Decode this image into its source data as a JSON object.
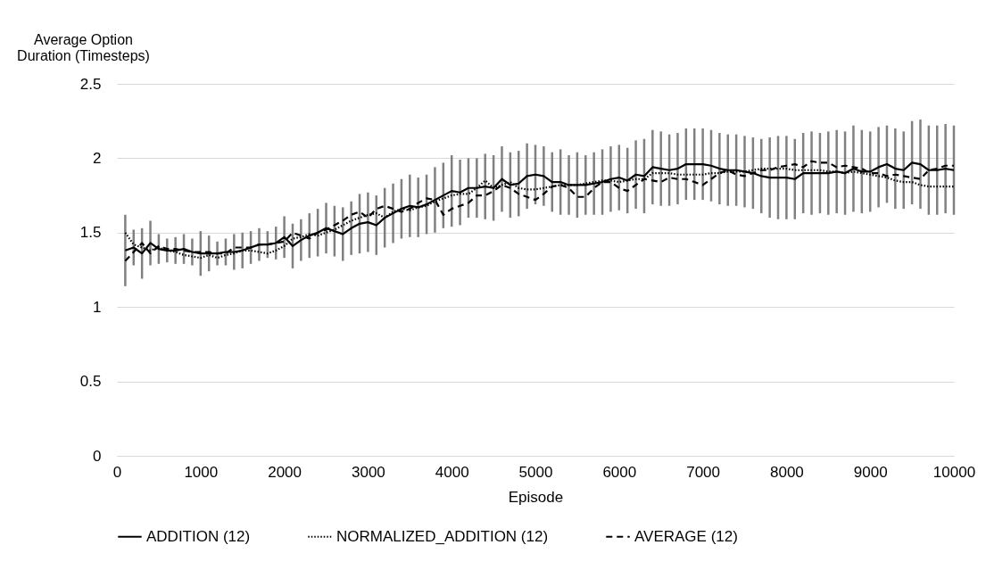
{
  "chart_data": {
    "type": "line",
    "xlabel": "Episode",
    "ylabel": "Average Option Duration (Timesteps)",
    "x": [
      100,
      200,
      300,
      400,
      500,
      600,
      700,
      800,
      900,
      1000,
      1100,
      1200,
      1300,
      1400,
      1500,
      1600,
      1700,
      1800,
      1900,
      2000,
      2100,
      2200,
      2300,
      2400,
      2500,
      2600,
      2700,
      2800,
      2900,
      3000,
      3100,
      3200,
      3300,
      3400,
      3500,
      3600,
      3700,
      3800,
      3900,
      4000,
      4100,
      4200,
      4300,
      4400,
      4500,
      4600,
      4700,
      4800,
      4900,
      5000,
      5100,
      5200,
      5300,
      5400,
      5500,
      5600,
      5700,
      5800,
      5900,
      6000,
      6100,
      6200,
      6300,
      6400,
      6500,
      6600,
      6700,
      6800,
      6900,
      7000,
      7100,
      7200,
      7300,
      7400,
      7500,
      7600,
      7700,
      7800,
      7900,
      8000,
      8100,
      8200,
      8300,
      8400,
      8500,
      8600,
      8700,
      8800,
      8900,
      9000,
      9100,
      9200,
      9300,
      9400,
      9500,
      9600,
      9700,
      9800,
      9900,
      10000
    ],
    "series": [
      {
        "name": "ADDITION (12)",
        "color": "#000000",
        "line_style": "solid",
        "values": [
          1.38,
          1.4,
          1.36,
          1.43,
          1.39,
          1.38,
          1.38,
          1.39,
          1.37,
          1.36,
          1.36,
          1.36,
          1.37,
          1.37,
          1.38,
          1.4,
          1.42,
          1.42,
          1.43,
          1.47,
          1.41,
          1.45,
          1.48,
          1.5,
          1.53,
          1.51,
          1.49,
          1.53,
          1.56,
          1.57,
          1.55,
          1.6,
          1.63,
          1.66,
          1.68,
          1.67,
          1.69,
          1.72,
          1.75,
          1.78,
          1.77,
          1.8,
          1.8,
          1.81,
          1.8,
          1.86,
          1.82,
          1.83,
          1.88,
          1.89,
          1.88,
          1.84,
          1.84,
          1.82,
          1.82,
          1.82,
          1.83,
          1.84,
          1.86,
          1.87,
          1.85,
          1.89,
          1.88,
          1.94,
          1.93,
          1.92,
          1.93,
          1.96,
          1.96,
          1.96,
          1.95,
          1.93,
          1.92,
          1.92,
          1.91,
          1.9,
          1.88,
          1.87,
          1.87,
          1.87,
          1.86,
          1.9,
          1.9,
          1.9,
          1.9,
          1.91,
          1.9,
          1.93,
          1.91,
          1.91,
          1.94,
          1.96,
          1.93,
          1.92,
          1.97,
          1.96,
          1.92,
          1.92,
          1.93,
          1.92
        ],
        "errors": [
          0.24,
          0.12,
          0.17,
          0.15,
          0.1,
          0.08,
          0.09,
          0.1,
          0.09,
          0.15,
          0.12,
          0.08,
          0.09,
          0.12,
          0.12,
          0.11,
          0.11,
          0.09,
          0.11,
          0.14,
          0.15,
          0.14,
          0.15,
          0.16,
          0.17,
          0.17,
          0.18,
          0.18,
          0.2,
          0.2,
          0.2,
          0.2,
          0.2,
          0.2,
          0.21,
          0.2,
          0.2,
          0.22,
          0.22,
          0.24,
          0.22,
          0.2,
          0.2,
          0.22,
          0.22,
          0.22,
          0.22,
          0.22,
          0.22,
          0.2,
          0.2,
          0.2,
          0.22,
          0.2,
          0.22,
          0.2,
          0.21,
          0.22,
          0.22,
          0.22,
          0.22,
          0.23,
          0.25,
          0.25,
          0.25,
          0.24,
          0.24,
          0.24,
          0.24,
          0.24,
          0.24,
          0.24,
          0.24,
          0.24,
          0.24,
          0.24,
          0.25,
          0.27,
          0.28,
          0.28,
          0.27,
          0.27,
          0.28,
          0.27,
          0.28,
          0.28,
          0.28,
          0.29,
          0.28,
          0.27,
          0.27,
          0.26,
          0.27,
          0.26,
          0.28,
          0.3,
          0.3,
          0.3,
          0.3,
          0.3
        ]
      },
      {
        "name": "NORMALIZED_ADDITION (12)",
        "color": "#000000",
        "line_style": "dotted",
        "values": [
          1.5,
          1.42,
          1.4,
          1.38,
          1.4,
          1.38,
          1.37,
          1.35,
          1.34,
          1.33,
          1.35,
          1.33,
          1.35,
          1.36,
          1.38,
          1.38,
          1.37,
          1.36,
          1.38,
          1.41,
          1.46,
          1.47,
          1.49,
          1.48,
          1.5,
          1.52,
          1.55,
          1.58,
          1.6,
          1.62,
          1.63,
          1.6,
          1.64,
          1.66,
          1.65,
          1.67,
          1.68,
          1.71,
          1.73,
          1.75,
          1.76,
          1.76,
          1.8,
          1.85,
          1.8,
          1.82,
          1.84,
          1.8,
          1.79,
          1.79,
          1.8,
          1.81,
          1.82,
          1.82,
          1.82,
          1.83,
          1.84,
          1.85,
          1.85,
          1.84,
          1.85,
          1.86,
          1.86,
          1.9,
          1.9,
          1.9,
          1.89,
          1.89,
          1.89,
          1.89,
          1.9,
          1.9,
          1.91,
          1.91,
          1.91,
          1.92,
          1.93,
          1.93,
          1.93,
          1.93,
          1.92,
          1.92,
          1.92,
          1.92,
          1.91,
          1.91,
          1.9,
          1.91,
          1.9,
          1.89,
          1.88,
          1.87,
          1.85,
          1.84,
          1.84,
          1.82,
          1.81,
          1.81,
          1.81,
          1.81
        ]
      },
      {
        "name": "AVERAGE (12)",
        "color": "#000000",
        "line_style": "dashed",
        "values": [
          1.31,
          1.37,
          1.43,
          1.36,
          1.41,
          1.39,
          1.39,
          1.38,
          1.37,
          1.37,
          1.37,
          1.36,
          1.36,
          1.4,
          1.4,
          1.4,
          1.42,
          1.42,
          1.43,
          1.44,
          1.5,
          1.48,
          1.46,
          1.5,
          1.52,
          1.55,
          1.58,
          1.62,
          1.64,
          1.6,
          1.66,
          1.68,
          1.66,
          1.64,
          1.66,
          1.7,
          1.73,
          1.72,
          1.62,
          1.66,
          1.68,
          1.7,
          1.75,
          1.75,
          1.78,
          1.82,
          1.8,
          1.76,
          1.74,
          1.72,
          1.76,
          1.81,
          1.82,
          1.8,
          1.74,
          1.74,
          1.8,
          1.84,
          1.84,
          1.8,
          1.78,
          1.82,
          1.86,
          1.85,
          1.84,
          1.87,
          1.86,
          1.86,
          1.84,
          1.82,
          1.86,
          1.9,
          1.92,
          1.89,
          1.88,
          1.9,
          1.92,
          1.92,
          1.94,
          1.95,
          1.96,
          1.94,
          1.98,
          1.97,
          1.97,
          1.94,
          1.95,
          1.94,
          1.93,
          1.9,
          1.9,
          1.88,
          1.89,
          1.88,
          1.87,
          1.86,
          1.92,
          1.93,
          1.95,
          1.95
        ]
      }
    ],
    "xlim": [
      0,
      10000
    ],
    "xticks": [
      0,
      1000,
      2000,
      3000,
      4000,
      5000,
      6000,
      7000,
      8000,
      9000,
      10000
    ],
    "ylim": [
      0,
      2.5
    ],
    "yticks": [
      0,
      0.5,
      1,
      1.5,
      2,
      2.5
    ],
    "grid": "y",
    "legend": "bottom"
  }
}
